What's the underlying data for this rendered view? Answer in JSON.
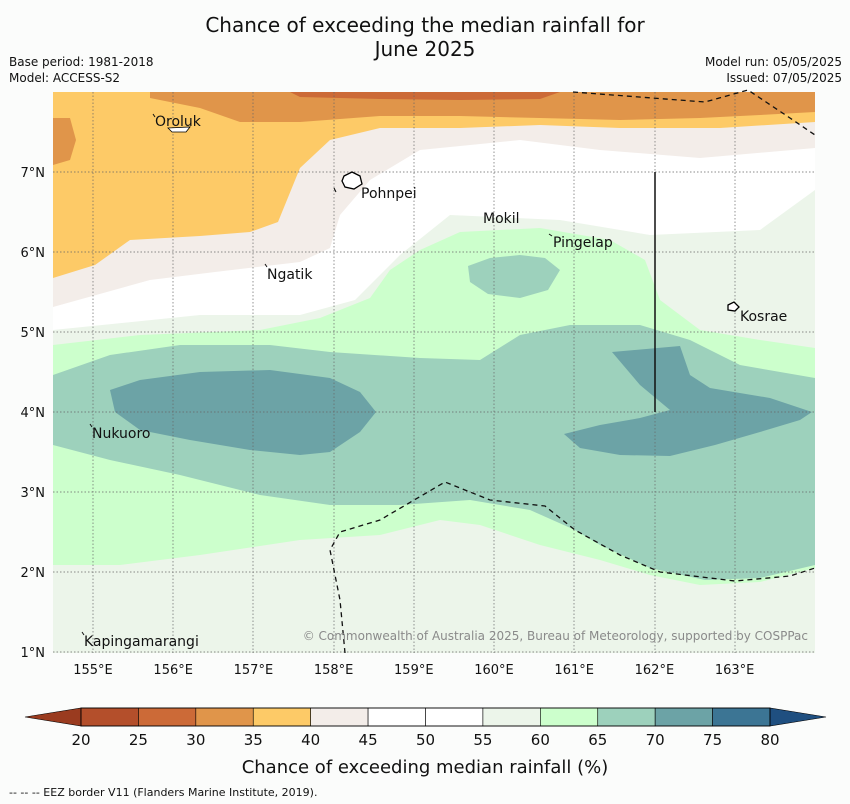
{
  "title": {
    "line1": "Chance of exceeding the median rainfall for",
    "line2": "June 2025"
  },
  "meta": {
    "base_period": "Base period: 1981-2018",
    "model": "Model: ACCESS-S2",
    "model_run": "Model run: 05/05/2025",
    "issued": "Issued: 07/05/2025"
  },
  "map": {
    "lon_labels": [
      "155°E",
      "156°E",
      "157°E",
      "158°E",
      "159°E",
      "160°E",
      "161°E",
      "162°E",
      "163°E"
    ],
    "lat_labels": [
      "7°N",
      "6°N",
      "5°N",
      "4°N",
      "3°N",
      "2°N",
      "1°N"
    ],
    "places": [
      "Oroluk",
      "Pohnpei",
      "Mokil",
      "Pingelap",
      "Ngatik",
      "Kosrae",
      "Nukuoro",
      "Kapingamarangi"
    ],
    "copyright": "© Commonwealth of Australia 2025, Bureau of Meteorology, supported by COSPPac"
  },
  "colorbar": {
    "ticks": [
      "20",
      "25",
      "30",
      "35",
      "40",
      "45",
      "50",
      "55",
      "60",
      "65",
      "70",
      "75",
      "80"
    ],
    "colors": [
      "#b44f2b",
      "#cc6a37",
      "#e0954a",
      "#fdca67",
      "#f3ede9",
      "#ffffff",
      "#ffffff",
      "#ecf5ea",
      "#ccffcc",
      "#9dd1bc",
      "#6ca3a6",
      "#3c7594"
    ],
    "under_color": "#9a3b1f",
    "over_color": "#1f4f80",
    "label": "Chance of exceeding median rainfall (%)"
  },
  "footnote": "--  --  -- EEZ border V11 (Flanders Marine Institute, 2019)."
}
